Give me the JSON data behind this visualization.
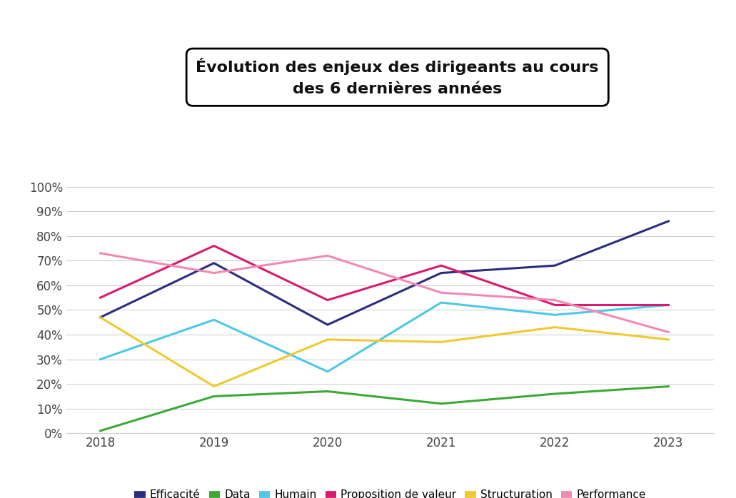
{
  "title_line1": "Évolution des enjeux des dirigeants au cours",
  "title_line2": "des 6 dernières années",
  "years": [
    2018,
    2019,
    2020,
    2021,
    2022,
    2023
  ],
  "series": {
    "Efficacité": {
      "values": [
        47,
        69,
        44,
        65,
        68,
        86
      ],
      "color": "#2b2d7e"
    },
    "Data": {
      "values": [
        1,
        15,
        17,
        12,
        16,
        19
      ],
      "color": "#3aaa35"
    },
    "Humain": {
      "values": [
        30,
        46,
        25,
        53,
        48,
        52
      ],
      "color": "#4dc8e8"
    },
    "Proposition de valeur": {
      "values": [
        55,
        76,
        54,
        68,
        52,
        52
      ],
      "color": "#d91a6e"
    },
    "Structuration": {
      "values": [
        47,
        19,
        38,
        37,
        43,
        38
      ],
      "color": "#f0c930"
    },
    "Performance": {
      "values": [
        73,
        65,
        72,
        57,
        54,
        41
      ],
      "color": "#f08ab4"
    }
  },
  "ylim": [
    0,
    105
  ],
  "yticks": [
    0,
    10,
    20,
    30,
    40,
    50,
    60,
    70,
    80,
    90,
    100
  ],
  "ytick_labels": [
    "0%",
    "10%",
    "20%",
    "30%",
    "40%",
    "50%",
    "60%",
    "70%",
    "80%",
    "90%",
    "100%"
  ],
  "background_color": "#ffffff",
  "grid_color": "#d0d0d0",
  "line_width": 2.2,
  "title_fontsize": 16,
  "tick_fontsize": 12,
  "legend_fontsize": 11
}
